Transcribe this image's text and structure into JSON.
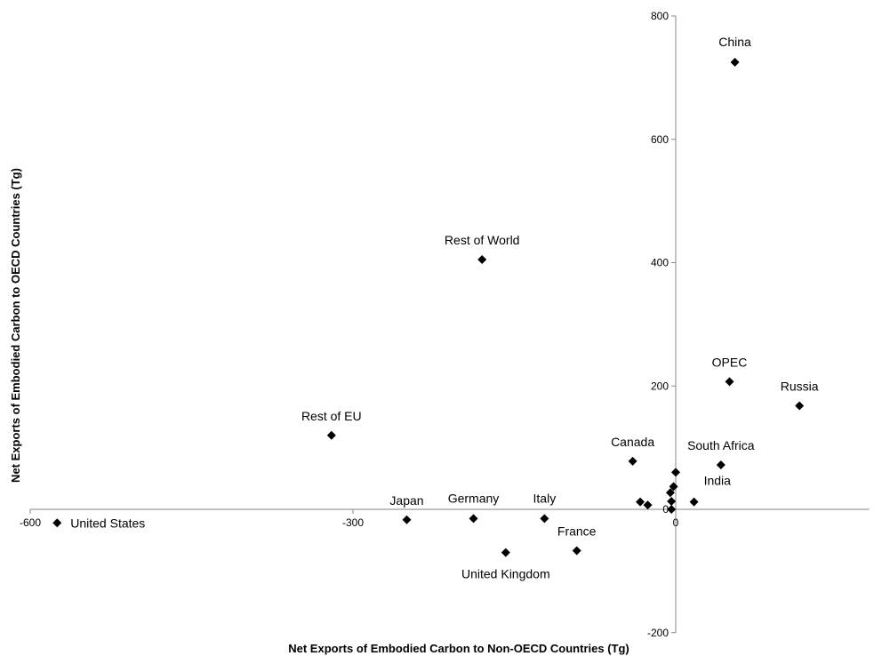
{
  "chart_data": {
    "type": "scatter",
    "xlabel": "Net Exports of Embodied Carbon to Non-OECD Countries (Tg)",
    "ylabel": "Net  Exports of Embodied Carbon to OECD Countries (Tg)",
    "xlim": [
      -600,
      180
    ],
    "ylim": [
      -200,
      800
    ],
    "x_ticks": [
      -600,
      -300,
      0
    ],
    "y_ticks": [
      -200,
      0,
      200,
      400,
      600,
      800
    ],
    "grid": false,
    "legend": "none",
    "marker": "diamond",
    "marker_color": "#000000",
    "points": [
      {
        "label": "China",
        "x": 55,
        "y": 725
      },
      {
        "label": "Rest of World",
        "x": -180,
        "y": 405
      },
      {
        "label": "OPEC",
        "x": 50,
        "y": 207
      },
      {
        "label": "Russia",
        "x": 115,
        "y": 168
      },
      {
        "label": "Rest of EU",
        "x": -320,
        "y": 120
      },
      {
        "label": "Canada",
        "x": -40,
        "y": 78
      },
      {
        "label": "South Africa",
        "x": 42,
        "y": 72
      },
      {
        "label": "India",
        "x": 17,
        "y": 12
      },
      {
        "label": "United States",
        "x": -575,
        "y": -22
      },
      {
        "label": "Japan",
        "x": -250,
        "y": -17
      },
      {
        "label": "Germany",
        "x": -188,
        "y": -15
      },
      {
        "label": "Italy",
        "x": -122,
        "y": -15
      },
      {
        "label": "France",
        "x": -92,
        "y": -67
      },
      {
        "label": "United Kingdom",
        "x": -158,
        "y": -70
      },
      {
        "label": "",
        "x": 0,
        "y": 60
      },
      {
        "label": "",
        "x": -2,
        "y": 37
      },
      {
        "label": "",
        "x": -5,
        "y": 27
      },
      {
        "label": "",
        "x": -4,
        "y": 13
      },
      {
        "label": "",
        "x": -4,
        "y": 0
      },
      {
        "label": "",
        "x": -33,
        "y": 12
      },
      {
        "label": "",
        "x": -26,
        "y": 7
      }
    ]
  }
}
